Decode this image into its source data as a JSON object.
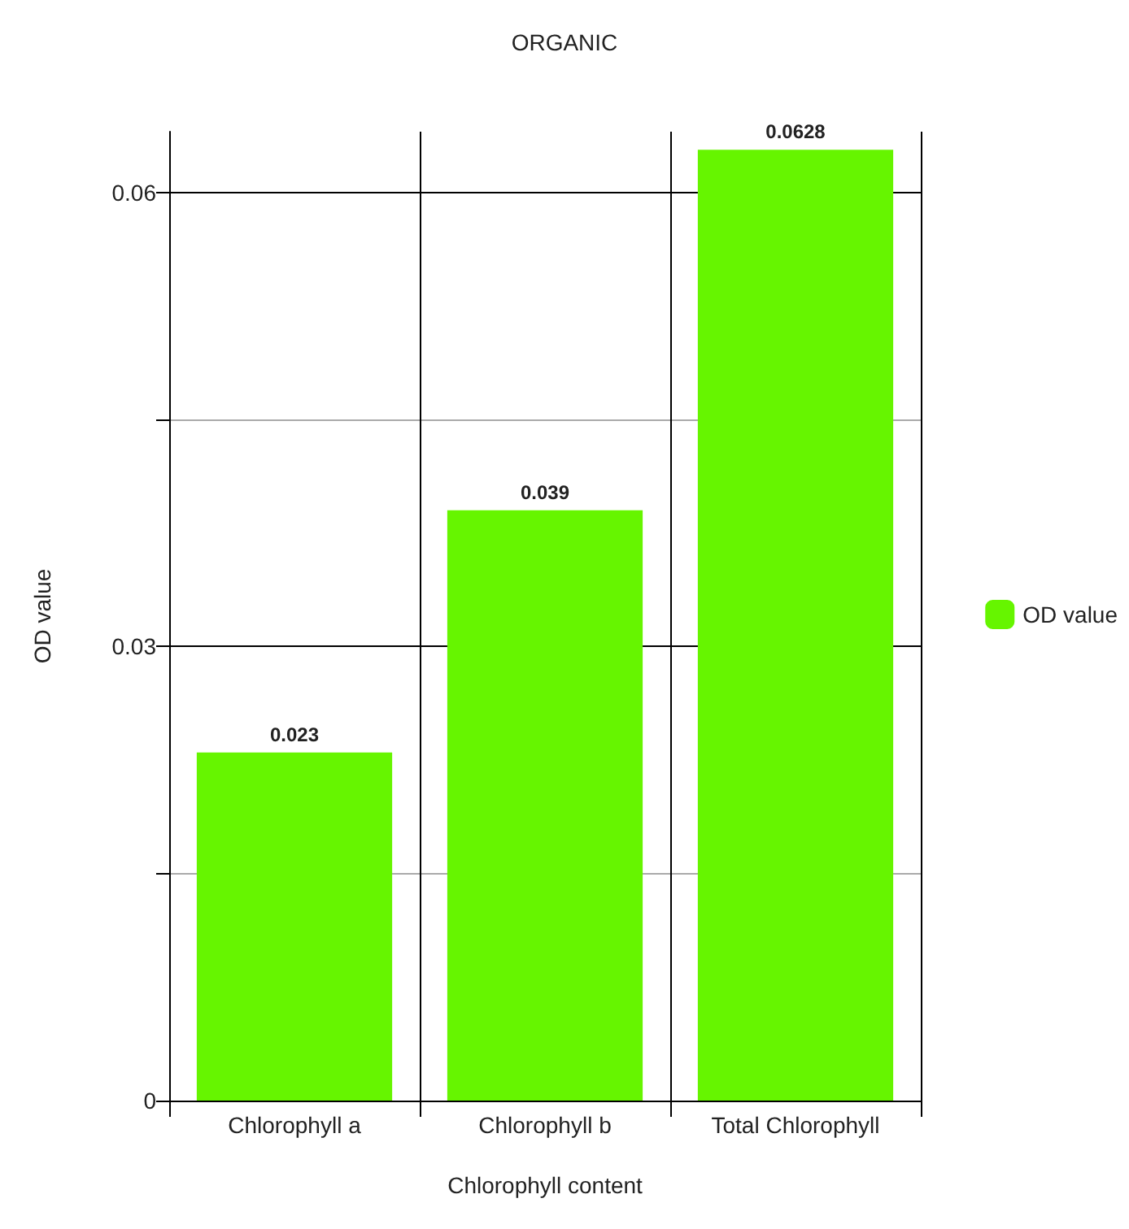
{
  "chart_data": {
    "type": "bar",
    "title": "ORGANIC",
    "xlabel": "Chlorophyll content",
    "ylabel": "OD value",
    "categories": [
      "Chlorophyll a",
      "Chlorophyll b",
      "Total Chlorophyll"
    ],
    "series": [
      {
        "name": "OD value",
        "color": "#66f500",
        "values": [
          0.023,
          0.039,
          0.0628
        ]
      }
    ],
    "ylim": [
      0,
      0.064
    ],
    "yticks": [
      0,
      {
        "value": 0.015,
        "label": null
      },
      0.03,
      {
        "value": 0.045,
        "label": null
      },
      0.06
    ],
    "grid": true,
    "legend": "right",
    "data_labels": true
  }
}
